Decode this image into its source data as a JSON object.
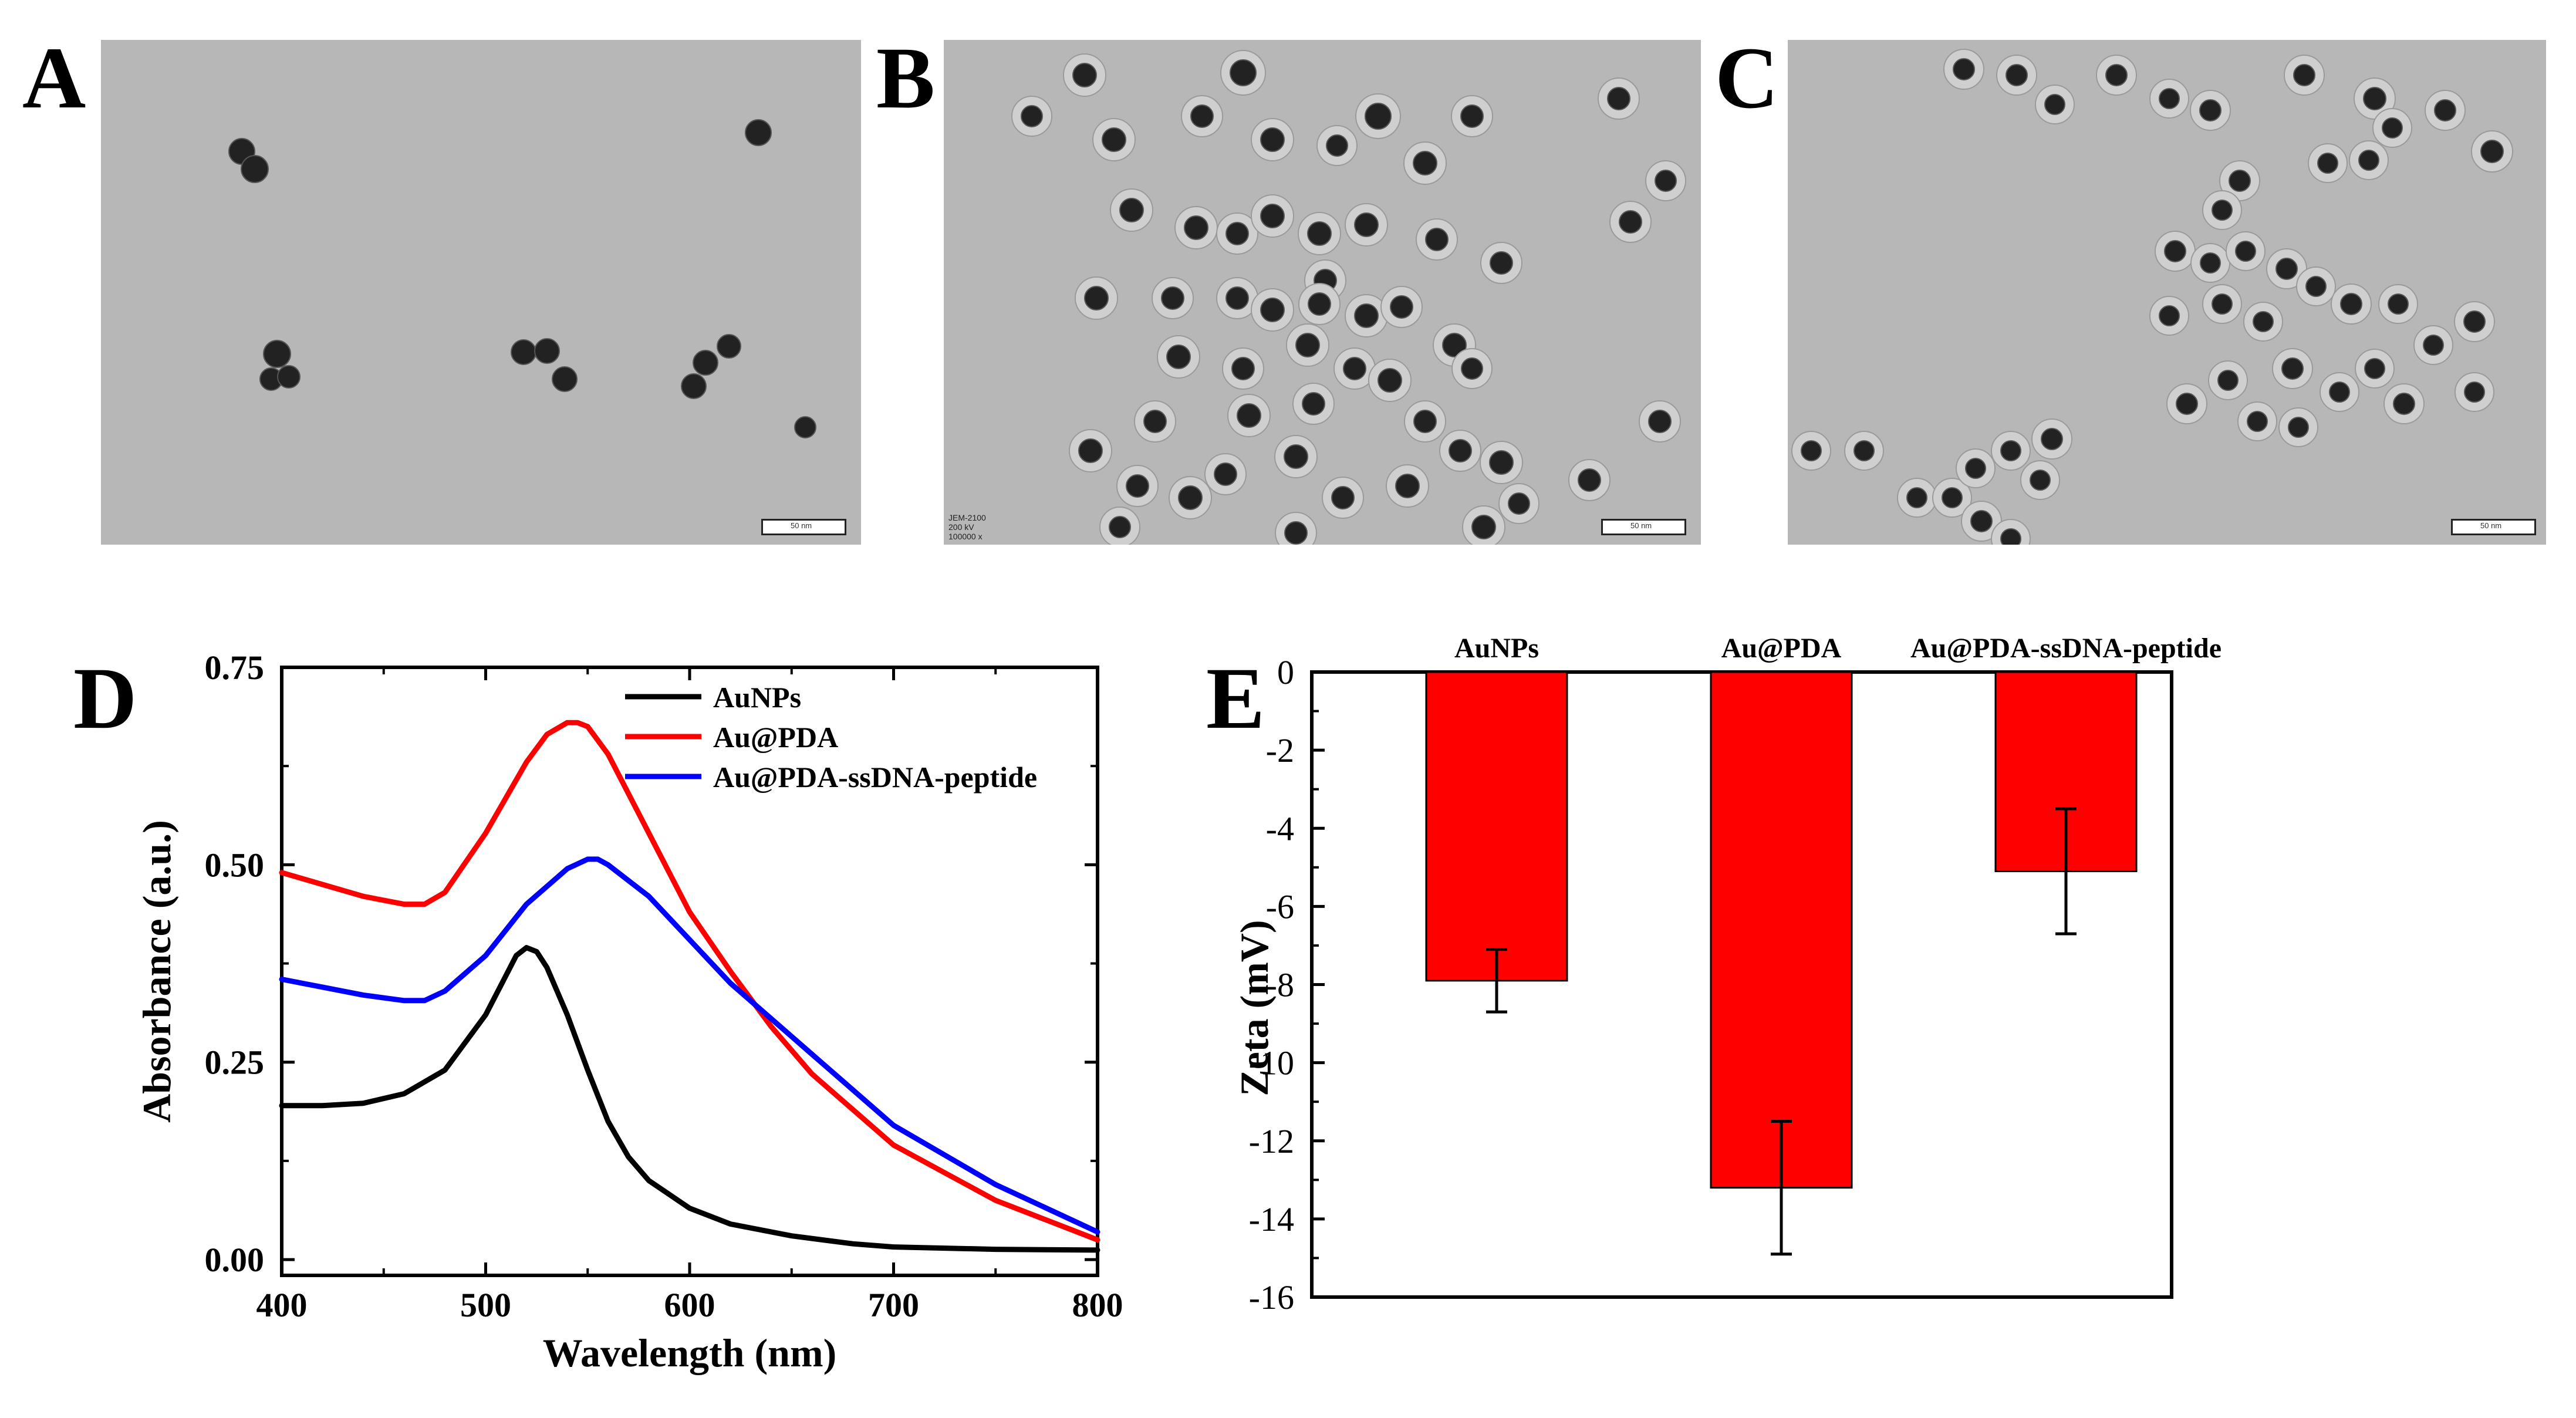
{
  "panels": {
    "a": {
      "letter": "A",
      "scale": "50 nm"
    },
    "b": {
      "letter": "B",
      "scale": "50 nm",
      "instrument": "JEM-2100",
      "voltage": "200 kV",
      "magnification": "100000 x"
    },
    "c": {
      "letter": "C",
      "scale": "50 nm"
    },
    "d": {
      "letter": "D"
    },
    "e": {
      "letter": "E"
    }
  },
  "chart_data": [
    {
      "type": "line",
      "xlabel": "Wavelength (nm)",
      "ylabel": "Absorbance (a.u.)",
      "xlim": [
        400,
        800
      ],
      "ylim": [
        -0.02,
        0.75
      ],
      "xticks": [
        "400",
        "500",
        "600",
        "700",
        "800"
      ],
      "yticks": [
        "0.00",
        "0.25",
        "0.50",
        "0.75"
      ],
      "legend_position": "top-right",
      "series": [
        {
          "name": "AuNPs",
          "color": "#000000",
          "x": [
            400,
            420,
            440,
            460,
            480,
            500,
            510,
            515,
            520,
            525,
            530,
            540,
            550,
            560,
            570,
            580,
            600,
            620,
            650,
            680,
            700,
            750,
            800
          ],
          "y": [
            0.195,
            0.195,
            0.198,
            0.21,
            0.24,
            0.31,
            0.36,
            0.385,
            0.395,
            0.39,
            0.37,
            0.31,
            0.24,
            0.175,
            0.13,
            0.1,
            0.065,
            0.045,
            0.03,
            0.02,
            0.016,
            0.013,
            0.012
          ]
        },
        {
          "name": "Au@PDA",
          "color": "#ff0000",
          "x": [
            400,
            420,
            440,
            460,
            470,
            480,
            500,
            520,
            530,
            540,
            545,
            550,
            560,
            580,
            600,
            620,
            640,
            660,
            700,
            750,
            800
          ],
          "y": [
            0.49,
            0.475,
            0.46,
            0.45,
            0.45,
            0.465,
            0.54,
            0.63,
            0.665,
            0.68,
            0.68,
            0.675,
            0.64,
            0.54,
            0.44,
            0.365,
            0.295,
            0.235,
            0.145,
            0.075,
            0.025
          ]
        },
        {
          "name": "Au@PDA-ssDNA-peptide",
          "color": "#0000ff",
          "x": [
            400,
            420,
            440,
            460,
            470,
            480,
            500,
            520,
            540,
            550,
            555,
            560,
            580,
            600,
            620,
            640,
            660,
            700,
            750,
            800
          ],
          "y": [
            0.355,
            0.345,
            0.335,
            0.328,
            0.328,
            0.34,
            0.385,
            0.45,
            0.495,
            0.507,
            0.507,
            0.5,
            0.46,
            0.405,
            0.35,
            0.305,
            0.26,
            0.17,
            0.095,
            0.035
          ]
        }
      ]
    },
    {
      "type": "bar",
      "categories": [
        "AuNPs",
        "Au@PDA",
        "Au@PDA-ssDNA-peptide"
      ],
      "values": [
        -7.9,
        -13.2,
        -5.1
      ],
      "errors": [
        0.8,
        1.7,
        1.6
      ],
      "color": "#ff0000",
      "xlabel": "",
      "ylabel": "Zeta (mV)",
      "ylim": [
        -16,
        0
      ],
      "yticks": [
        "0",
        "-2",
        "-4",
        "-6",
        "-8",
        "-10",
        "-12",
        "-14",
        "-16"
      ],
      "category_labels_position": "top"
    }
  ]
}
